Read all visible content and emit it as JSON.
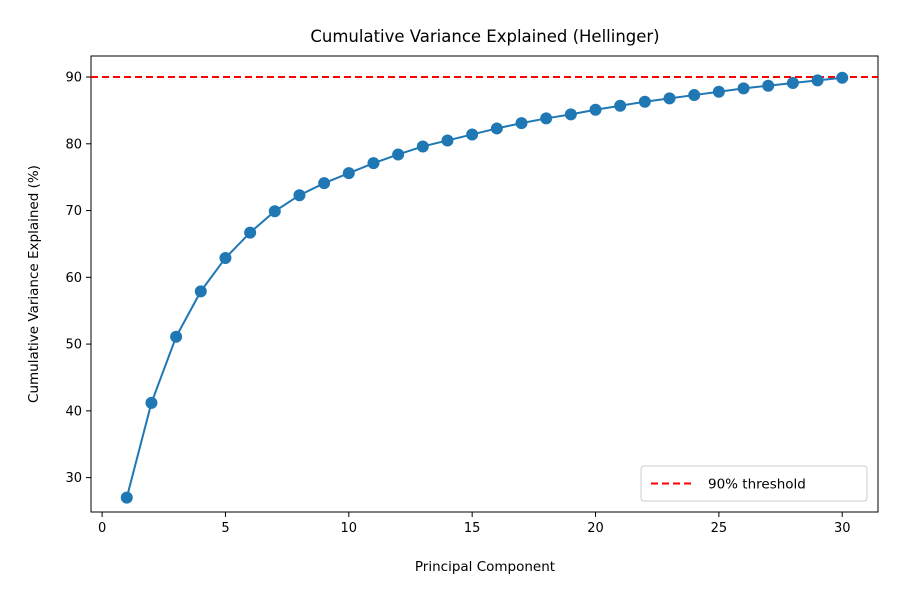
{
  "chart_data": {
    "type": "line",
    "title": "Cumulative Variance Explained (Hellinger)",
    "xlabel": "Principal Component",
    "ylabel": "Cumulative Variance Explained (%)",
    "xlim": [
      -0.45,
      31.45
    ],
    "ylim": [
      24.85,
      93.15
    ],
    "x_ticks": [
      0,
      5,
      10,
      15,
      20,
      25,
      30
    ],
    "y_ticks": [
      30,
      40,
      50,
      60,
      70,
      80,
      90
    ],
    "grid": false,
    "legend_position": "bottom-right",
    "series": [
      {
        "color": "#1f77b4",
        "marker": "circle",
        "x": [
          1,
          2,
          3,
          4,
          5,
          6,
          7,
          8,
          9,
          10,
          11,
          12,
          13,
          14,
          15,
          16,
          17,
          18,
          19,
          20,
          21,
          22,
          23,
          24,
          25,
          26,
          27,
          28,
          29,
          30
        ],
        "y": [
          27.0,
          41.2,
          51.1,
          57.9,
          62.9,
          66.7,
          69.9,
          72.3,
          74.1,
          75.6,
          77.1,
          78.4,
          79.6,
          80.5,
          81.4,
          82.3,
          83.1,
          83.8,
          84.4,
          85.1,
          85.7,
          86.3,
          86.8,
          87.3,
          87.8,
          88.3,
          88.7,
          89.1,
          89.5,
          89.9
        ]
      }
    ],
    "reference_lines": [
      {
        "orientation": "horizontal",
        "y": 90,
        "color": "#ff0000",
        "style": "dashed",
        "label": "90% threshold"
      }
    ]
  }
}
